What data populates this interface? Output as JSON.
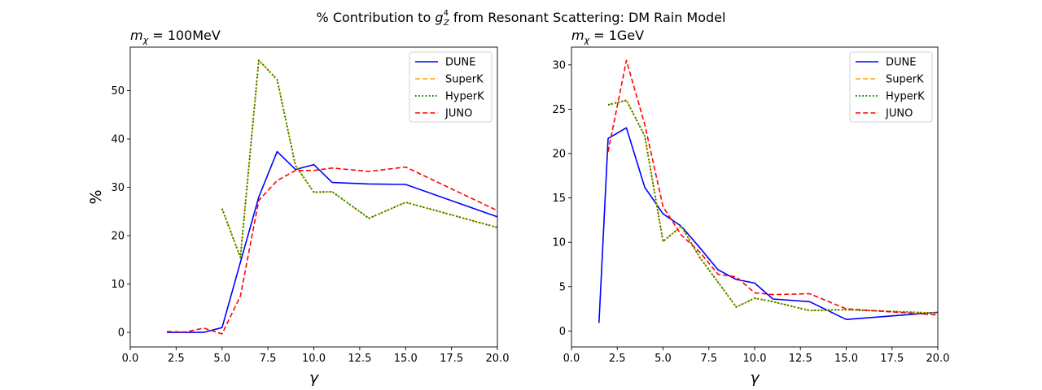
{
  "figure_title": {
    "prefix": "% Contribution to ",
    "symbol": "g",
    "symbol_sub": "Z",
    "symbol_sup": "4",
    "suffix": " from Resonant Scattering: DM Rain Model"
  },
  "series_colors": {
    "DUNE": "#0000ff",
    "SuperK": "#ffa500",
    "HyperK": "#008000",
    "JUNO": "#ff0000"
  },
  "chart_data": [
    {
      "type": "line",
      "title": "m_χ = 100MeV",
      "title_symbol": "m",
      "title_sub": "χ",
      "title_rest": " = 100MeV",
      "xlabel": "γ",
      "ylabel": "%",
      "xlim": [
        0,
        20
      ],
      "ylim": [
        -3,
        59
      ],
      "xticks": [
        0,
        2.5,
        5,
        7.5,
        10,
        12.5,
        15,
        17.5,
        20
      ],
      "xtick_labels": [
        "0.0",
        "2.5",
        "5.0",
        "7.5",
        "10.0",
        "12.5",
        "15.0",
        "17.5",
        "20.0"
      ],
      "yticks": [
        0,
        10,
        20,
        30,
        40,
        50
      ],
      "ytick_labels": [
        "0",
        "10",
        "20",
        "30",
        "40",
        "50"
      ],
      "legend": {
        "position": "top-right",
        "entries": [
          "DUNE",
          "SuperK",
          "HyperK",
          "JUNO"
        ]
      },
      "series": [
        {
          "name": "DUNE",
          "style": "solid",
          "x": [
            2,
            3,
            4,
            5,
            6,
            7,
            8,
            9,
            10,
            11,
            13,
            15,
            20
          ],
          "y": [
            0.0,
            0.0,
            0.0,
            1.0,
            14.5,
            28.0,
            37.4,
            33.7,
            34.7,
            31.0,
            30.7,
            30.6,
            23.9
          ]
        },
        {
          "name": "SuperK",
          "style": "dashed",
          "x": [
            5,
            6,
            7,
            8,
            9,
            10,
            11,
            13,
            15,
            20
          ],
          "y": [
            25.6,
            15.5,
            56.3,
            52.3,
            34.5,
            29.0,
            29.1,
            23.6,
            26.9,
            21.7
          ]
        },
        {
          "name": "HyperK",
          "style": "dotted",
          "x": [
            5,
            6,
            7,
            8,
            9,
            10,
            11,
            13,
            15,
            20
          ],
          "y": [
            25.6,
            15.5,
            56.3,
            52.3,
            34.5,
            29.0,
            29.1,
            23.6,
            26.9,
            21.7
          ]
        },
        {
          "name": "JUNO",
          "style": "dashed",
          "x": [
            2,
            3,
            4,
            5,
            6,
            7,
            8,
            9,
            10,
            11,
            13,
            15,
            20
          ],
          "y": [
            0.2,
            0.1,
            0.9,
            -0.3,
            7.5,
            27.3,
            31.4,
            33.5,
            33.5,
            34.0,
            33.3,
            34.2,
            25.2
          ]
        }
      ]
    },
    {
      "type": "line",
      "title": "m_χ = 1GeV",
      "title_symbol": "m",
      "title_sub": "χ",
      "title_rest": " = 1GeV",
      "xlabel": "γ",
      "ylabel": "",
      "xlim": [
        0,
        20
      ],
      "ylim": [
        -1.8,
        32
      ],
      "xticks": [
        0,
        2.5,
        5,
        7.5,
        10,
        12.5,
        15,
        17.5,
        20
      ],
      "xtick_labels": [
        "0.0",
        "2.5",
        "5.0",
        "7.5",
        "10.0",
        "12.5",
        "15.0",
        "17.5",
        "20.0"
      ],
      "yticks": [
        0,
        5,
        10,
        15,
        20,
        25,
        30
      ],
      "ytick_labels": [
        "0",
        "5",
        "10",
        "15",
        "20",
        "25",
        "30"
      ],
      "legend": {
        "position": "top-right",
        "entries": [
          "DUNE",
          "SuperK",
          "HyperK",
          "JUNO"
        ]
      },
      "series": [
        {
          "name": "DUNE",
          "style": "solid",
          "x": [
            1.5,
            2,
            3,
            4,
            5,
            6,
            7,
            8,
            9,
            10,
            11,
            13,
            15,
            20
          ],
          "y": [
            0.9,
            21.7,
            22.9,
            16.2,
            13.2,
            11.8,
            9.4,
            6.9,
            5.8,
            5.4,
            3.6,
            3.3,
            1.3,
            2.1
          ]
        },
        {
          "name": "SuperK",
          "style": "dashed",
          "x": [
            2,
            3,
            4,
            5,
            6,
            7,
            8,
            9,
            10,
            11,
            13,
            15,
            20
          ],
          "y": [
            25.5,
            26.0,
            22.0,
            10.1,
            11.8,
            8.3,
            5.5,
            2.7,
            3.7,
            3.3,
            2.3,
            2.4,
            2.0
          ]
        },
        {
          "name": "HyperK",
          "style": "dotted",
          "x": [
            2,
            3,
            4,
            5,
            6,
            7,
            8,
            9,
            10,
            11,
            13,
            15,
            20
          ],
          "y": [
            25.5,
            26.0,
            22.0,
            10.1,
            11.8,
            8.3,
            5.5,
            2.7,
            3.7,
            3.3,
            2.3,
            2.4,
            2.0
          ]
        },
        {
          "name": "JUNO",
          "style": "dashed",
          "x": [
            2,
            3,
            4,
            5,
            6,
            7,
            8,
            9,
            10,
            11,
            13,
            15,
            20
          ],
          "y": [
            20.2,
            30.5,
            23.3,
            14.0,
            10.8,
            8.9,
            6.4,
            6.1,
            4.3,
            4.1,
            4.2,
            2.5,
            1.8
          ]
        }
      ]
    }
  ]
}
